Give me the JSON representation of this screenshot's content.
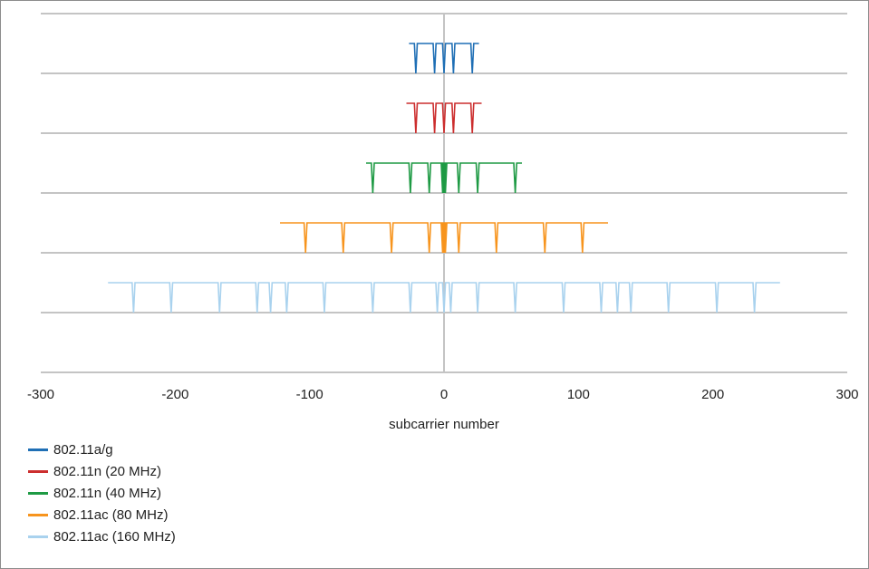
{
  "chart_data": {
    "type": "line",
    "title": "",
    "xlabel": "subcarrier number",
    "ylabel": "",
    "xlim": [
      -300,
      300
    ],
    "x_ticks": [
      "-300",
      "-200",
      "-100",
      "0",
      "100",
      "200",
      "300"
    ],
    "grid": "horizontal",
    "legend_position": "bottom-left",
    "series": [
      {
        "name": "802.11a/g",
        "color": "#1f6fb5",
        "subcarrier_range": [
          -26,
          26
        ],
        "dips": [
          -21,
          -7,
          0,
          7,
          21
        ]
      },
      {
        "name": "802.11n (20 MHz)",
        "color": "#cc2e2e",
        "subcarrier_range": [
          -28,
          28
        ],
        "dips": [
          -21,
          -7,
          0,
          7,
          21
        ]
      },
      {
        "name": "802.11n (40 MHz)",
        "color": "#1e9a44",
        "subcarrier_range": [
          -58,
          58
        ],
        "dips": [
          -53,
          -25,
          -11,
          -1,
          0,
          1,
          11,
          25,
          53
        ]
      },
      {
        "name": "802.11ac (80 MHz)",
        "color": "#f7941d",
        "subcarrier_range": [
          -122,
          122
        ],
        "dips": [
          -103,
          -75,
          -39,
          -11,
          -1,
          0,
          1,
          11,
          39,
          75,
          103
        ]
      },
      {
        "name": "802.11ac (160 MHz)",
        "color": "#a9d2ee",
        "subcarrier_range": [
          -250,
          250
        ],
        "dips": [
          -231,
          -203,
          -167,
          -139,
          -129,
          -117,
          -89,
          -53,
          -25,
          -5,
          0,
          5,
          25,
          53,
          89,
          117,
          129,
          139,
          167,
          203,
          231
        ]
      }
    ]
  }
}
